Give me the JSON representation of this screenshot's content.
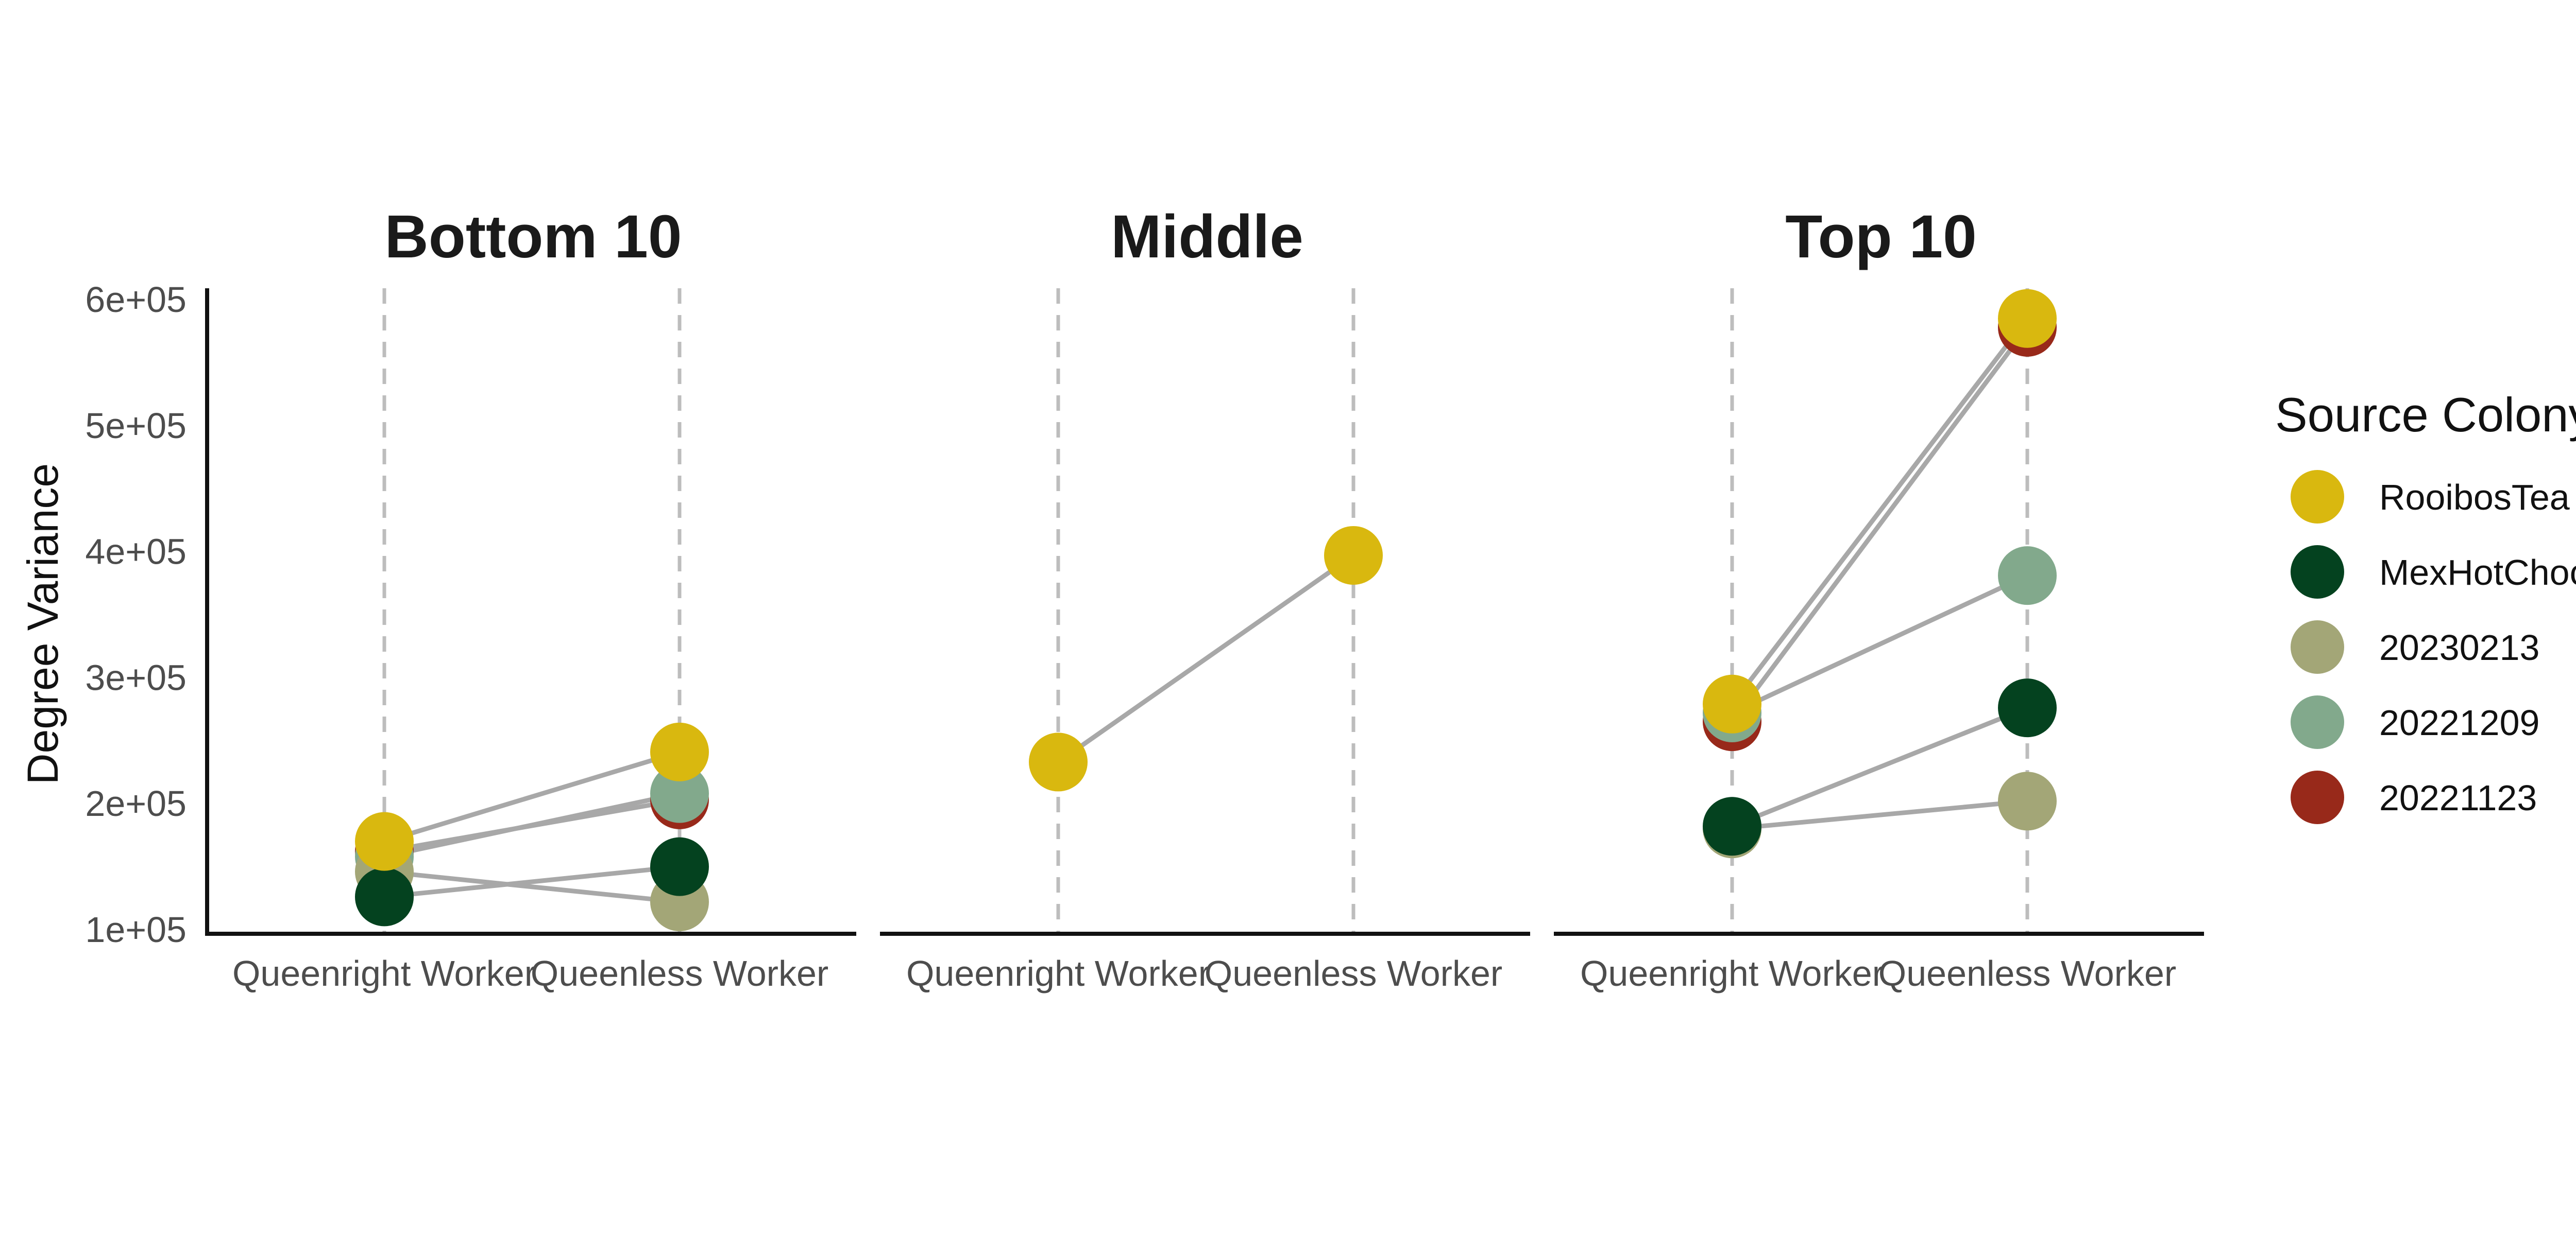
{
  "chart_data": {
    "type": "scatter",
    "ylabel": "Degree Variance",
    "ylim": [
      100000,
      600000
    ],
    "y_ticks": [
      100000,
      200000,
      300000,
      400000,
      500000,
      600000
    ],
    "y_tick_labels": [
      "1e+05",
      "2e+05",
      "3e+05",
      "4e+05",
      "5e+05",
      "6e+05"
    ],
    "x_categories": [
      "Queenright Worker",
      "Queenless Worker"
    ],
    "legend": {
      "title": "Source Colony",
      "placement": "right",
      "items": [
        {
          "name": "RooibosTea",
          "color": "#D9B80F"
        },
        {
          "name": "MexHotChoc",
          "color": "#04421F"
        },
        {
          "name": "20230213",
          "color": "#A3A677"
        },
        {
          "name": "20221209",
          "color": "#82A98C"
        },
        {
          "name": "20221123",
          "color": "#98291A"
        }
      ]
    },
    "line_color": "#A8A8A8",
    "panels": [
      {
        "title": "Bottom 10",
        "series": [
          {
            "name": "20221123",
            "values": [
              162000,
              203000
            ]
          },
          {
            "name": "20221209",
            "values": [
              158000,
              208000
            ]
          },
          {
            "name": "20230213",
            "values": [
              146000,
              122000
            ]
          },
          {
            "name": "MexHotChoc",
            "values": [
              126000,
              150000
            ]
          },
          {
            "name": "RooibosTea",
            "values": [
              170000,
              241000
            ]
          }
        ]
      },
      {
        "title": "Middle",
        "series": [
          {
            "name": "RooibosTea",
            "values": [
              233000,
              397000
            ]
          }
        ]
      },
      {
        "title": "Top 10",
        "series": [
          {
            "name": "20230213",
            "values": [
              180000,
              202000
            ]
          },
          {
            "name": "MexHotChoc",
            "values": [
              182000,
              276000
            ]
          },
          {
            "name": "20221123",
            "values": [
              265000,
              578000
            ]
          },
          {
            "name": "20221209",
            "values": [
              272000,
              381000
            ]
          },
          {
            "name": "RooibosTea",
            "values": [
              279000,
              585000
            ]
          }
        ]
      }
    ]
  }
}
